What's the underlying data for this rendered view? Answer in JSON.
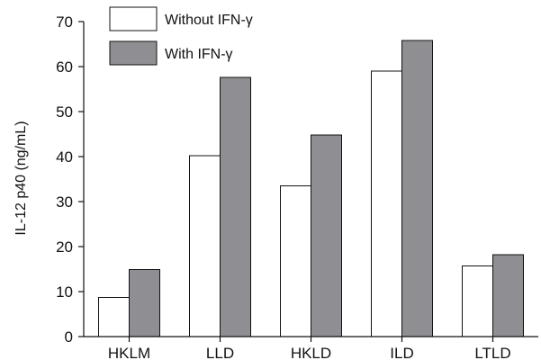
{
  "chart_data": {
    "type": "bar",
    "categories": [
      "HKLM",
      "LLD",
      "HKLD",
      "ILD",
      "LTLD"
    ],
    "series": [
      {
        "name": "Without IFN-γ",
        "values": [
          8.7,
          40.2,
          33.5,
          59.0,
          15.7
        ],
        "color": "#ffffff"
      },
      {
        "name": "With IFN-γ",
        "values": [
          14.9,
          57.6,
          44.8,
          65.8,
          18.2
        ],
        "color": "#8f8f93"
      }
    ],
    "title": "",
    "xlabel": "",
    "ylabel": "IL-12 p40 (ng/mL)",
    "ylim": [
      0,
      70
    ],
    "yticks": [
      "0",
      "10",
      "20",
      "30",
      "40",
      "50",
      "60",
      "70"
    ],
    "grid": false,
    "legend_position": "top-left"
  }
}
